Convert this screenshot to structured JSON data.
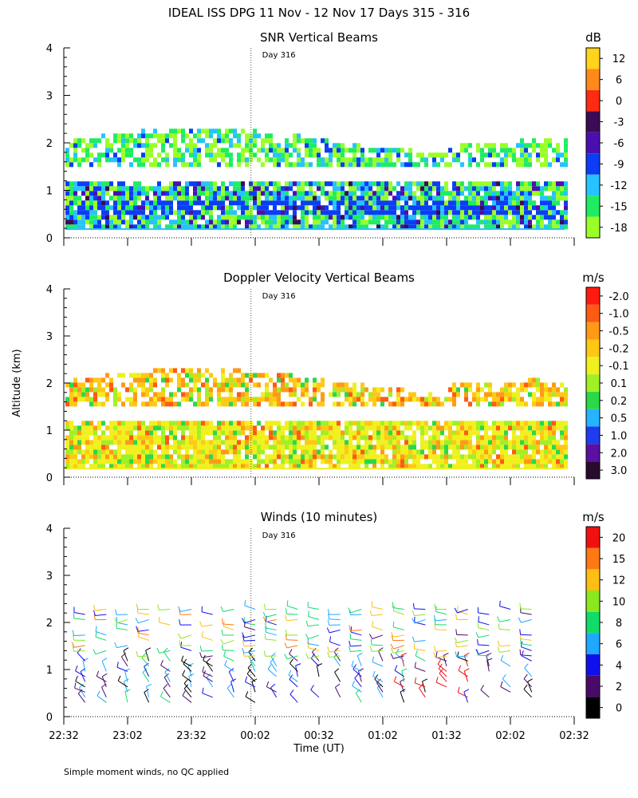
{
  "figure": {
    "title": "IDEAL ISS DPG  11 Nov - 12 Nov 17 Days 315 - 316",
    "ylabel": "Altitude (km)",
    "xlabel": "Time (UT)",
    "footnote": "Simple moment winds, no QC applied"
  },
  "chart_data": [
    {
      "type": "heatmap",
      "title": "SNR Vertical Beams",
      "xlabel": "Time (UT)",
      "ylabel": "Altitude (km)",
      "x_ticks": [
        "22:32",
        "23:02",
        "23:32",
        "00:02",
        "00:32",
        "01:02",
        "01:32",
        "02:02",
        "02:32"
      ],
      "y_ticks": [
        "0",
        "1",
        "2",
        "3",
        "4"
      ],
      "ylim": [
        0,
        4
      ],
      "marker_label": "Day 316",
      "marker_time": "00:00",
      "colorbar": {
        "unit": "dB",
        "labels": [
          "-18",
          "-15",
          "-12",
          "-9",
          "-6",
          "-3",
          "0",
          "6",
          "12"
        ],
        "colors": [
          "#9aff26",
          "#1eed62",
          "#25c3ff",
          "#0a3df5",
          "#4b0fb0",
          "#3d0a55",
          "#ff2a12",
          "#ff8a1a",
          "#ffd41a"
        ]
      },
      "layers": [
        {
          "altitude_km": [
            0.2,
            1.1
          ],
          "dominant_db": [
            -12,
            -6
          ]
        },
        {
          "altitude_km": [
            1.5,
            2.1
          ],
          "dominant_db": [
            -15,
            -9
          ]
        }
      ]
    },
    {
      "type": "heatmap",
      "title": "Doppler Velocity Vertical Beams",
      "xlabel": "Time (UT)",
      "ylabel": "Altitude (km)",
      "x_ticks": [
        "22:32",
        "23:02",
        "23:32",
        "00:02",
        "00:32",
        "01:02",
        "01:32",
        "02:02",
        "02:32"
      ],
      "y_ticks": [
        "0",
        "1",
        "2",
        "3",
        "4"
      ],
      "ylim": [
        0,
        4
      ],
      "marker_label": "Day 316",
      "marker_time": "00:00",
      "colorbar": {
        "unit": "m/s",
        "labels": [
          "3.0",
          "2.0",
          "1.0",
          "0.5",
          "0.2",
          "0.1",
          "-0.1",
          "-0.2",
          "-0.5",
          "-1.0",
          "-2.0"
        ],
        "colors": [
          "#2a0a2e",
          "#5a10a0",
          "#1e3cf0",
          "#25b4ff",
          "#2ad848",
          "#a0f024",
          "#f0f01e",
          "#ffc814",
          "#ff9a14",
          "#ff5a14",
          "#ff1a10"
        ]
      },
      "layers": [
        {
          "altitude_km": [
            0.2,
            1.1
          ],
          "dominant_ms": [
            -0.2,
            0.1
          ]
        },
        {
          "altitude_km": [
            1.5,
            2.1
          ],
          "dominant_ms": [
            -1.0,
            -0.2
          ]
        }
      ]
    },
    {
      "type": "scatter",
      "title": "Winds (10 minutes)",
      "xlabel": "Time (UT)",
      "ylabel": "Altitude (km)",
      "x_ticks": [
        "22:32",
        "23:02",
        "23:32",
        "00:02",
        "00:32",
        "01:02",
        "01:32",
        "02:02",
        "02:32"
      ],
      "y_ticks": [
        "0",
        "1",
        "2",
        "3",
        "4"
      ],
      "ylim": [
        0,
        4
      ],
      "marker_label": "Day 316",
      "marker_time": "00:00",
      "colorbar": {
        "unit": "m/s",
        "labels": [
          "0",
          "2",
          "4",
          "6",
          "8",
          "10",
          "12",
          "15",
          "20"
        ],
        "colors": [
          "#000000",
          "#4a0a6a",
          "#1010ee",
          "#1ea8ff",
          "#10dc6a",
          "#8ae81e",
          "#ffbe14",
          "#ff7814",
          "#f01010"
        ]
      },
      "profiles_minutes_after_2232": [
        10,
        20,
        30,
        40,
        50,
        60,
        70,
        80,
        90,
        100,
        110,
        120,
        130,
        140,
        150,
        160,
        170,
        180,
        190,
        200,
        210,
        220
      ],
      "altitude_range_km": [
        0.2,
        2.3
      ]
    }
  ]
}
